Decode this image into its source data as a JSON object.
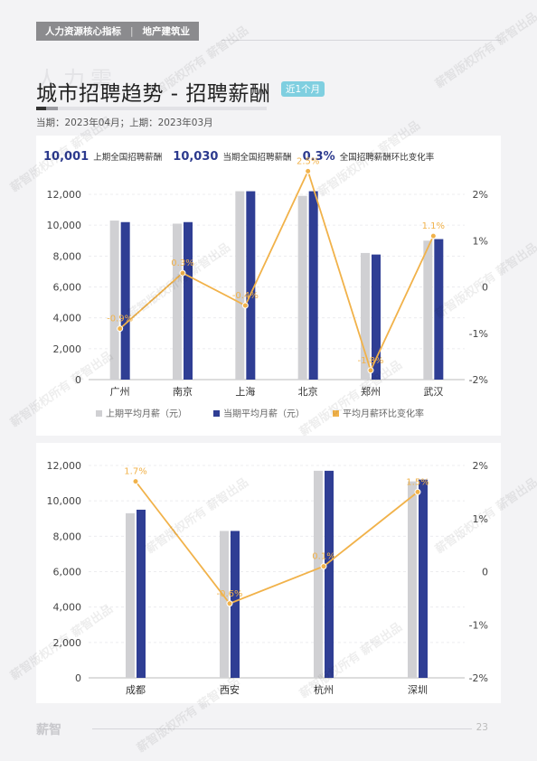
{
  "header": {
    "tab1": "人力资源核心指标",
    "sep": "|",
    "tab2": "地产建筑业"
  },
  "page": {
    "ghost": "人力需",
    "title": "城市招聘趋势 - 招聘薪酬",
    "badge": "近1个月",
    "period": "当期：2023年04月；上期：2023年03月"
  },
  "kpis": [
    {
      "value": "10,001",
      "label": "上期全国招聘薪酬"
    },
    {
      "value": "10,030",
      "label": "当期全国招聘薪酬"
    },
    {
      "value": "0.3%",
      "label": "全国招聘薪酬环比变化率"
    }
  ],
  "colors": {
    "prev": "#d0d0d3",
    "curr": "#2f3e94",
    "rate": "#f1b24a"
  },
  "legend": [
    "上期平均月薪（元）",
    "当期平均月薪（元）",
    "平均月薪环比变化率"
  ],
  "chart_data": [
    {
      "type": "bar",
      "categories": [
        "广州",
        "南京",
        "上海",
        "北京",
        "郑州",
        "武汉"
      ],
      "series": [
        {
          "name": "上期平均月薪（元）",
          "values": [
            10300,
            10100,
            12200,
            11900,
            8200,
            9000
          ]
        },
        {
          "name": "当期平均月薪（元）",
          "values": [
            10200,
            10200,
            12200,
            12200,
            8100,
            9100
          ]
        },
        {
          "name": "平均月薪环比变化率",
          "type": "line",
          "axis": "right",
          "values": [
            -0.9,
            0.3,
            -0.4,
            2.5,
            -1.8,
            1.1
          ]
        }
      ],
      "rate_labels": [
        "-0.9%",
        "0.3%",
        "-0.4%",
        "2.5%",
        "-1.8%",
        "1.1%"
      ],
      "ylim": [
        0,
        12000
      ],
      "yticks": [
        "0",
        "2,000",
        "4,000",
        "6,000",
        "8,000",
        "10,000",
        "12,000"
      ],
      "y2lim": [
        -2,
        2
      ],
      "y2ticks": [
        "-2%",
        "-1%",
        "0",
        "1%",
        "2%"
      ],
      "legend_position": "bottom"
    },
    {
      "type": "bar",
      "categories": [
        "成都",
        "西安",
        "杭州",
        "深圳"
      ],
      "series": [
        {
          "name": "上期平均月薪（元）",
          "values": [
            9300,
            8300,
            11700,
            11100
          ]
        },
        {
          "name": "当期平均月薪（元）",
          "values": [
            9500,
            8300,
            11700,
            11200
          ]
        },
        {
          "name": "平均月薪环比变化率",
          "type": "line",
          "axis": "right",
          "values": [
            1.7,
            -0.6,
            0.1,
            1.5
          ]
        }
      ],
      "rate_labels": [
        "1.7%",
        "-0.6%",
        "0.1%",
        "1.5%"
      ],
      "ylim": [
        0,
        12000
      ],
      "yticks": [
        "0",
        "2,000",
        "4,000",
        "6,000",
        "8,000",
        "10,000",
        "12,000"
      ],
      "y2lim": [
        -2,
        2
      ],
      "y2ticks": [
        "-2%",
        "-1%",
        "0",
        "1%",
        "2%"
      ]
    }
  ],
  "footer": {
    "logo": "薪智",
    "page_number": "23"
  },
  "watermark": "薪智版权所有 薪智出品"
}
